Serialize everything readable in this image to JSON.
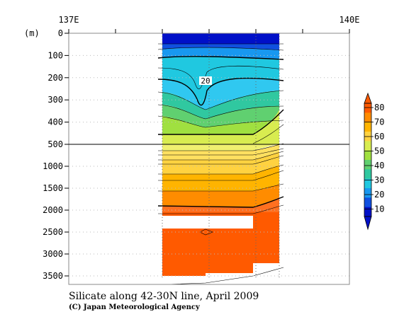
{
  "chart_data": {
    "type": "heatmap",
    "title": "Silicate along 42-30N line, April 2009",
    "credit": "(C) Japan Meteorological Agency",
    "ylabel": "(m)",
    "x_ticks": [
      {
        "value": 137,
        "label": "137E"
      },
      {
        "value": 140,
        "label": "140E"
      }
    ],
    "xlim": [
      137,
      140
    ],
    "y_upper": {
      "range": [
        0,
        500
      ],
      "ticks": [
        "0",
        "100",
        "200",
        "300",
        "400",
        "500"
      ]
    },
    "y_lower": {
      "range": [
        500,
        3800
      ],
      "ticks": [
        "1000",
        "1500",
        "2000",
        "2500",
        "3000",
        "3500"
      ]
    },
    "section_lon": [
      138.0,
      139.25
    ],
    "stations_lon": [
      138.0,
      138.5,
      139.0,
      139.25
    ],
    "contour_label": "20",
    "colorbar": {
      "levels": [
        "80",
        "70",
        "60",
        "50",
        "40",
        "30",
        "20",
        "10"
      ],
      "colors": [
        "#ff5a00",
        "#ff8c00",
        "#ffb400",
        "#ffd240",
        "#d8ec50",
        "#a0e040",
        "#60d070",
        "#30c8a0",
        "#20c8e0",
        "#1898f0",
        "#1050e0",
        "#0010c8"
      ]
    },
    "grid": true
  }
}
